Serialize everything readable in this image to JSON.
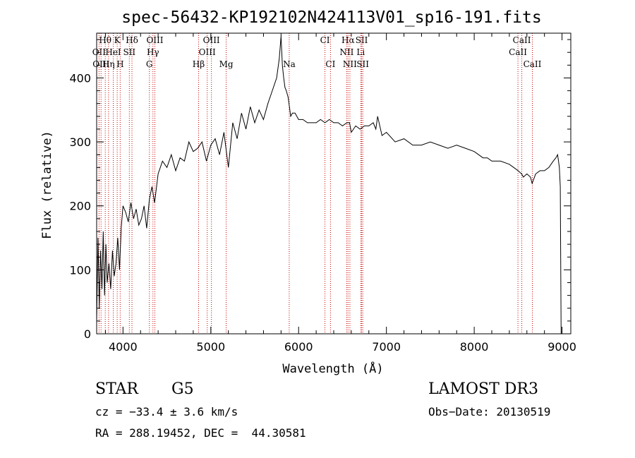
{
  "chart_data": {
    "type": "line",
    "title": "spec-56432-KP192102N424113V01_sp16-191.fits",
    "xlabel": "Wavelength (Å)",
    "ylabel": "Flux (relative)",
    "xlim": [
      3700,
      9100
    ],
    "ylim": [
      0,
      470
    ],
    "xticks": [
      4000,
      5000,
      6000,
      7000,
      8000,
      9000
    ],
    "yticks": [
      0,
      100,
      200,
      300,
      400
    ],
    "grid": false,
    "series": [
      {
        "x": [
          3700,
          3715,
          3730,
          3745,
          3760,
          3775,
          3790,
          3805,
          3820,
          3840,
          3860,
          3880,
          3900,
          3920,
          3940,
          3960,
          3980,
          4000,
          4030,
          4060,
          4090,
          4120,
          4150,
          4180,
          4210,
          4240,
          4270,
          4300,
          4330,
          4360,
          4400,
          4450,
          4500,
          4550,
          4600,
          4650,
          4700,
          4750,
          4800,
          4850,
          4900,
          4950,
          5000,
          5050,
          5100,
          5150,
          5200,
          5250,
          5300,
          5350,
          5400,
          5450,
          5500,
          5550,
          5600,
          5650,
          5700,
          5750,
          5780,
          5800,
          5815,
          5830,
          5845,
          5860,
          5880,
          5895,
          5910,
          5930,
          5960,
          6000,
          6050,
          6100,
          6150,
          6200,
          6250,
          6300,
          6350,
          6400,
          6450,
          6500,
          6550,
          6580,
          6600,
          6650,
          6700,
          6750,
          6800,
          6850,
          6880,
          6900,
          6950,
          7000,
          7100,
          7200,
          7300,
          7400,
          7500,
          7600,
          7700,
          7800,
          7900,
          8000,
          8100,
          8150,
          8200,
          8300,
          8400,
          8450,
          8500,
          8540,
          8560,
          8600,
          8640,
          8660,
          8700,
          8750,
          8800,
          8850,
          8900,
          8930,
          8950,
          8960,
          8970,
          8980,
          8990
        ],
        "y": [
          20,
          150,
          40,
          130,
          70,
          160,
          60,
          140,
          80,
          110,
          70,
          130,
          90,
          110,
          150,
          100,
          165,
          200,
          190,
          175,
          205,
          180,
          195,
          170,
          180,
          200,
          165,
          210,
          230,
          205,
          250,
          270,
          260,
          280,
          255,
          275,
          270,
          300,
          285,
          290,
          300,
          270,
          295,
          305,
          280,
          315,
          260,
          330,
          305,
          345,
          320,
          355,
          330,
          350,
          335,
          360,
          380,
          400,
          430,
          465,
          420,
          400,
          385,
          380,
          370,
          355,
          340,
          345,
          345,
          335,
          335,
          330,
          330,
          330,
          335,
          330,
          335,
          330,
          330,
          325,
          330,
          330,
          315,
          325,
          320,
          325,
          325,
          330,
          320,
          340,
          310,
          315,
          300,
          305,
          295,
          295,
          300,
          295,
          290,
          295,
          290,
          285,
          275,
          275,
          270,
          270,
          265,
          260,
          255,
          250,
          245,
          250,
          245,
          235,
          250,
          255,
          255,
          260,
          270,
          275,
          280,
          270,
          260,
          230,
          0
        ]
      }
    ],
    "line_marks": [
      {
        "label": "Hθ",
        "x": 3798,
        "row": 0
      },
      {
        "label": "K",
        "x": 3934,
        "row": 0
      },
      {
        "label": "Hδ",
        "x": 4102,
        "row": 0
      },
      {
        "label": "OIII",
        "x": 4363,
        "row": 0
      },
      {
        "label": "OIII",
        "x": 5007,
        "row": 0
      },
      {
        "label": "CI",
        "x": 6300,
        "row": 0
      },
      {
        "label": "Hα",
        "x": 6563,
        "row": 0
      },
      {
        "label": "SII",
        "x": 6718,
        "row": 0
      },
      {
        "label": "CaII",
        "x": 8542,
        "row": 0
      },
      {
        "label": "OII",
        "x": 3727,
        "row": 1
      },
      {
        "label": "HeI",
        "x": 3889,
        "row": 1
      },
      {
        "label": "SII",
        "x": 4072,
        "row": 1
      },
      {
        "label": "Hγ",
        "x": 4341,
        "row": 1
      },
      {
        "label": "OIII",
        "x": 4959,
        "row": 1
      },
      {
        "label": "NII",
        "x": 6548,
        "row": 1
      },
      {
        "label": "Li",
        "x": 6708,
        "row": 1
      },
      {
        "label": "CaII",
        "x": 8498,
        "row": 1
      },
      {
        "label": "OIII",
        "x": 3750,
        "row": 2
      },
      {
        "label": "Hη",
        "x": 3835,
        "row": 2
      },
      {
        "label": "H",
        "x": 3968,
        "row": 2
      },
      {
        "label": "G",
        "x": 4300,
        "row": 2
      },
      {
        "label": "Hβ",
        "x": 4861,
        "row": 2
      },
      {
        "label": "Mg",
        "x": 5175,
        "row": 2
      },
      {
        "label": "Na",
        "x": 5893,
        "row": 2
      },
      {
        "label": "CI",
        "x": 6363,
        "row": 2
      },
      {
        "label": "NII",
        "x": 6584,
        "row": 2
      },
      {
        "label": "SII",
        "x": 6731,
        "row": 2
      },
      {
        "label": "CaII",
        "x": 8662,
        "row": 2
      }
    ],
    "colors": {
      "line": "#000000",
      "marker_lines": "#cc0000"
    }
  },
  "info": {
    "class_label": "STAR",
    "subclass_label": "G5",
    "survey": "LAMOST DR3",
    "cz": "cz = −33.4 ± 3.6 km/s",
    "obs_date": "Obs−Date: 20130519",
    "coords": "RA = 288.19452, DEC =  44.30581"
  }
}
